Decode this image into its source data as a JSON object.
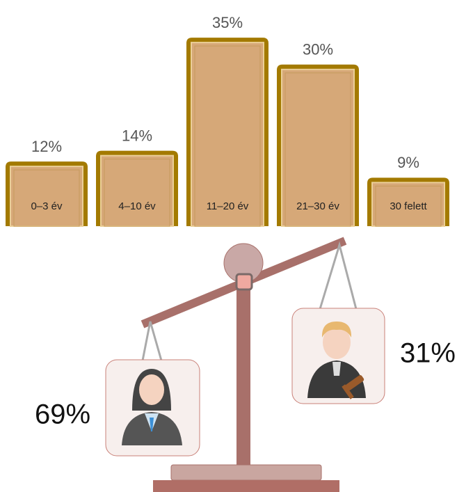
{
  "chart_data": [
    {
      "type": "bar",
      "categories": [
        "0–3 év",
        "4–10 év",
        "11–20 év",
        "21–30 év",
        "30 felett"
      ],
      "values": [
        12,
        14,
        35,
        30,
        9
      ],
      "value_labels": [
        "12%",
        "14%",
        "35%",
        "30%",
        "9%"
      ],
      "color": "#d6a878"
    },
    {
      "type": "scale",
      "values": [
        69,
        31
      ],
      "value_labels": [
        "69%",
        "31%"
      ]
    }
  ]
}
